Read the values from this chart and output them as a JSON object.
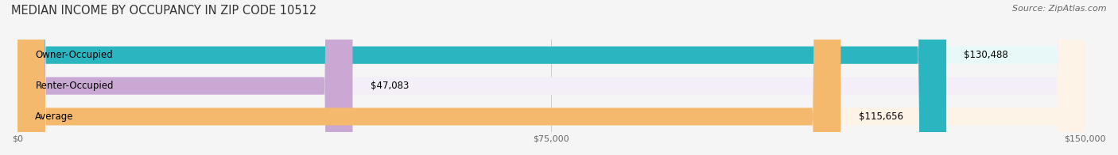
{
  "title": "MEDIAN INCOME BY OCCUPANCY IN ZIP CODE 10512",
  "source": "Source: ZipAtlas.com",
  "categories": [
    "Owner-Occupied",
    "Renter-Occupied",
    "Average"
  ],
  "values": [
    130488,
    47083,
    115656
  ],
  "bar_colors": [
    "#2ab5c1",
    "#c9a8d4",
    "#f5b96e"
  ],
  "bar_bg_colors": [
    "#e8f7f8",
    "#f3eef7",
    "#fdf3e7"
  ],
  "value_labels": [
    "$130,488",
    "$47,083",
    "$115,656"
  ],
  "xlim": [
    0,
    150000
  ],
  "xticks": [
    0,
    75000,
    150000
  ],
  "xtick_labels": [
    "$0",
    "$75,000",
    "$150,000"
  ],
  "background_color": "#f5f5f5",
  "bar_height": 0.55,
  "figsize": [
    14.06,
    1.96
  ],
  "dpi": 100
}
